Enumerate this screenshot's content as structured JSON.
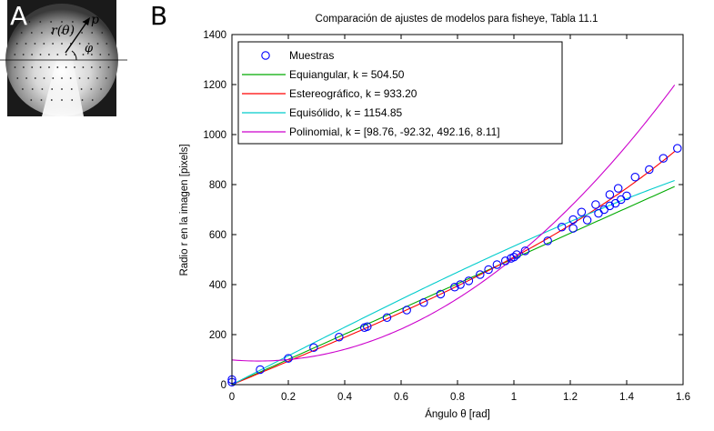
{
  "panel_a": {
    "letter": "A",
    "label_r": "r(θ)",
    "label_p": "p",
    "label_phi": "φ"
  },
  "panel_b": {
    "letter": "B"
  },
  "colors": {
    "samples": "#0000ff",
    "equiangular": "#00aa00",
    "stereographic": "#ff0000",
    "equisolid": "#00cccc",
    "polynomial": "#cc00cc"
  },
  "chart_data": {
    "type": "line",
    "title": "Comparación de ajustes de modelos para fisheye, Tabla 11.1",
    "xlabel": "Ángulo θ [rad]",
    "ylabel": "Radio r en la imagen [pixels]",
    "xlim": [
      0,
      1.6
    ],
    "ylim": [
      0,
      1400
    ],
    "xticks": [
      "0",
      "0.2",
      "0.4",
      "0.6",
      "0.8",
      "1",
      "1.2",
      "1.4",
      "1.6"
    ],
    "yticks": [
      "0",
      "200",
      "400",
      "600",
      "800",
      "1000",
      "1200",
      "1400"
    ],
    "legend_position": "top-left",
    "samples": {
      "name": "Muestras",
      "x": [
        0.0,
        0.0,
        0.1,
        0.2,
        0.29,
        0.38,
        0.47,
        0.48,
        0.55,
        0.62,
        0.68,
        0.74,
        0.79,
        0.81,
        0.84,
        0.88,
        0.91,
        0.94,
        0.97,
        0.99,
        1.0,
        1.01,
        1.04,
        1.12,
        1.17,
        1.21,
        1.21,
        1.24,
        1.26,
        1.29,
        1.3,
        1.32,
        1.34,
        1.34,
        1.36,
        1.37,
        1.38,
        1.4,
        1.43,
        1.48,
        1.53,
        1.58
      ],
      "y": [
        10,
        20,
        60,
        105,
        148,
        190,
        228,
        232,
        268,
        298,
        328,
        362,
        390,
        400,
        415,
        440,
        460,
        480,
        495,
        505,
        510,
        520,
        535,
        575,
        630,
        625,
        660,
        690,
        658,
        720,
        685,
        700,
        715,
        760,
        725,
        785,
        740,
        755,
        830,
        860,
        905,
        945
      ]
    },
    "series": [
      {
        "name": "Equiangular, k = 504.50",
        "model": "equiangular",
        "k": 504.5
      },
      {
        "name": "Estereográfico, k = 933.20",
        "model": "stereographic",
        "k": 933.2
      },
      {
        "name": "Equisólido, k = 1154.85",
        "model": "equisolid",
        "k": 1154.85
      },
      {
        "name": "Polinomial, k = [98.76, -92.32, 492.16, 8.11]",
        "model": "polynomial",
        "k": [
          98.76,
          -92.32,
          492.16,
          8.11
        ]
      }
    ]
  }
}
